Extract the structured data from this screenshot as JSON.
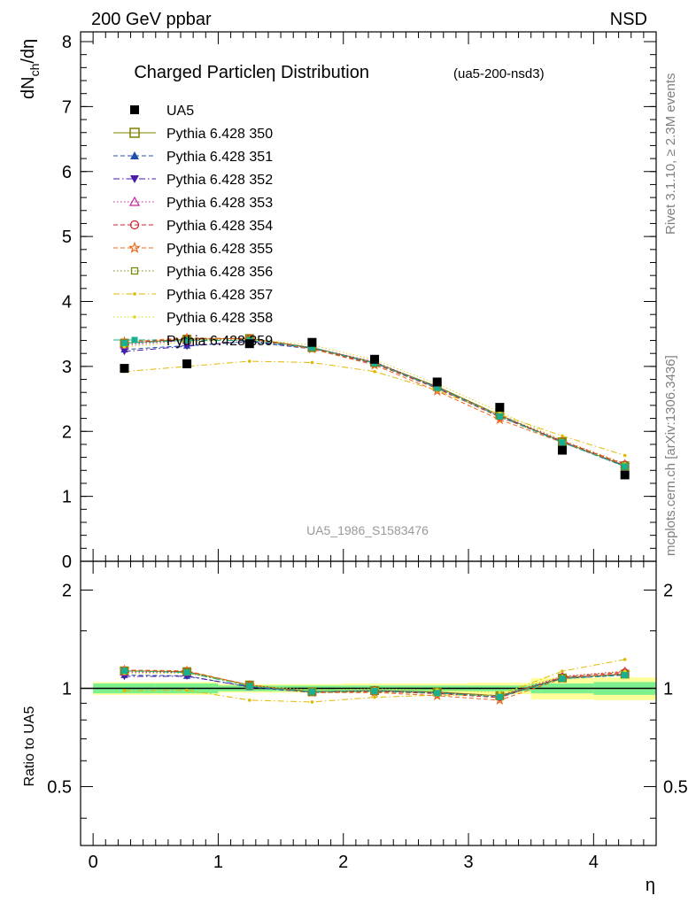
{
  "header": {
    "left_label": "200 GeV ppbar",
    "right_label": "NSD",
    "side_top": "Rivet 3.1.10, ≥ 2.3M events",
    "side_bottom": "mcplots.cern.ch [arXiv:1306.3436]"
  },
  "chart_data": [
    {
      "type": "scatter",
      "panel": "main",
      "title": "Charged Particleη Distribution",
      "subtitle": "(ua5-200-nsd3)",
      "watermark": "UA5_1986_S1583476",
      "xlabel": "η",
      "ylabel": "dN_ch/dη",
      "ylabel_main": "dN",
      "ylabel_sub": "ch",
      "ylabel_tail": "/dη",
      "xlim": [
        -0.1,
        4.5
      ],
      "ylim": [
        0,
        8.15
      ],
      "yticks": [
        0,
        1,
        2,
        3,
        4,
        5,
        6,
        7,
        8
      ],
      "ytick_labels": [
        "0",
        "1",
        "2",
        "3",
        "4",
        "5",
        "6",
        "7",
        "8"
      ],
      "legend_position": "top-left",
      "x": [
        0.25,
        0.75,
        1.25,
        1.75,
        2.25,
        2.75,
        3.25,
        3.75,
        4.25
      ],
      "data": {
        "name": "UA5",
        "color": "#000000",
        "values": [
          2.97,
          3.04,
          3.35,
          3.37,
          3.11,
          2.76,
          2.37,
          1.71,
          1.33
        ]
      },
      "series": [
        {
          "name": "Pythia 6.428 350",
          "color": "#808000",
          "marker": "open-square",
          "dash": "solid",
          "values": [
            3.36,
            3.42,
            3.43,
            3.29,
            3.06,
            2.69,
            2.25,
            1.84,
            1.47
          ]
        },
        {
          "name": "Pythia 6.428 351",
          "color": "#1f4fa8",
          "marker": "filled-triangle-up",
          "dash": "dashed",
          "values": [
            3.26,
            3.32,
            3.38,
            3.27,
            3.04,
            2.67,
            2.24,
            1.83,
            1.46
          ]
        },
        {
          "name": "Pythia 6.428 352",
          "color": "#4a1aa8",
          "marker": "filled-triangle-down",
          "dash": "dashdot",
          "values": [
            3.23,
            3.31,
            3.39,
            3.28,
            3.05,
            2.68,
            2.23,
            1.84,
            1.47
          ]
        },
        {
          "name": "Pythia 6.428 353",
          "color": "#c0209a",
          "marker": "open-triangle-up",
          "dash": "dotted",
          "values": [
            3.33,
            3.4,
            3.42,
            3.29,
            3.07,
            2.68,
            2.25,
            1.86,
            1.5
          ]
        },
        {
          "name": "Pythia 6.428 354",
          "color": "#d0202a",
          "marker": "open-circle",
          "dash": "dashed",
          "values": [
            3.36,
            3.43,
            3.43,
            3.28,
            3.04,
            2.66,
            2.22,
            1.85,
            1.49
          ]
        },
        {
          "name": "Pythia 6.428 355",
          "color": "#e86a1a",
          "marker": "open-star",
          "dash": "dashed",
          "values": [
            3.38,
            3.44,
            3.42,
            3.27,
            3.02,
            2.62,
            2.18,
            1.83,
            1.48
          ]
        },
        {
          "name": "Pythia 6.428 356",
          "color": "#7a8a10",
          "marker": "open-square-small",
          "dash": "dotted",
          "values": [
            3.35,
            3.41,
            3.41,
            3.28,
            3.05,
            2.68,
            2.24,
            1.84,
            1.47
          ]
        },
        {
          "name": "Pythia 6.428 357",
          "color": "#e0b800",
          "marker": "small-dot",
          "dash": "dashdot",
          "values": [
            2.92,
            3.0,
            3.08,
            3.06,
            2.92,
            2.63,
            2.26,
            1.93,
            1.63
          ]
        },
        {
          "name": "Pythia 6.428 358",
          "color": "#d8d820",
          "marker": "small-dot",
          "dash": "dotted",
          "values": [
            3.3,
            3.38,
            3.42,
            3.33,
            3.1,
            2.73,
            2.3,
            1.86,
            1.5
          ]
        },
        {
          "name": "Pythia 6.428 359",
          "color": "#18b090",
          "marker": "filled-square-small",
          "dash": "dashdot",
          "values": [
            3.36,
            3.4,
            3.4,
            3.29,
            3.05,
            2.67,
            2.23,
            1.83,
            1.46
          ]
        }
      ]
    },
    {
      "type": "line",
      "panel": "ratio",
      "ylabel": "Ratio to UA5",
      "xlabel": "η",
      "xlim": [
        -0.1,
        4.5
      ],
      "ylim": [
        0.33,
        2.45
      ],
      "yscale": "log",
      "yticks": [
        0.5,
        1,
        2
      ],
      "ytick_labels": [
        "0.5",
        "1",
        "2"
      ],
      "xticks": [
        0,
        1,
        2,
        3,
        4
      ],
      "xtick_labels": [
        "0",
        "1",
        "2",
        "3",
        "4"
      ],
      "bands": {
        "inner_color": "#7ef08e",
        "outer_color": "#ffff99",
        "edges": [
          0.0,
          0.5,
          1.0,
          1.5,
          2.0,
          2.5,
          3.0,
          3.5,
          4.0,
          4.5
        ],
        "inner_low": [
          0.965,
          0.965,
          0.98,
          0.98,
          0.98,
          0.98,
          0.98,
          0.965,
          0.955
        ],
        "inner_high": [
          1.035,
          1.035,
          1.02,
          1.02,
          1.02,
          1.02,
          1.02,
          1.035,
          1.045
        ],
        "outer_low": [
          0.955,
          0.955,
          0.97,
          0.97,
          0.97,
          0.965,
          0.96,
          0.925,
          0.92
        ],
        "outer_high": [
          1.045,
          1.045,
          1.03,
          1.03,
          1.035,
          1.035,
          1.04,
          1.075,
          1.08
        ]
      }
    }
  ]
}
